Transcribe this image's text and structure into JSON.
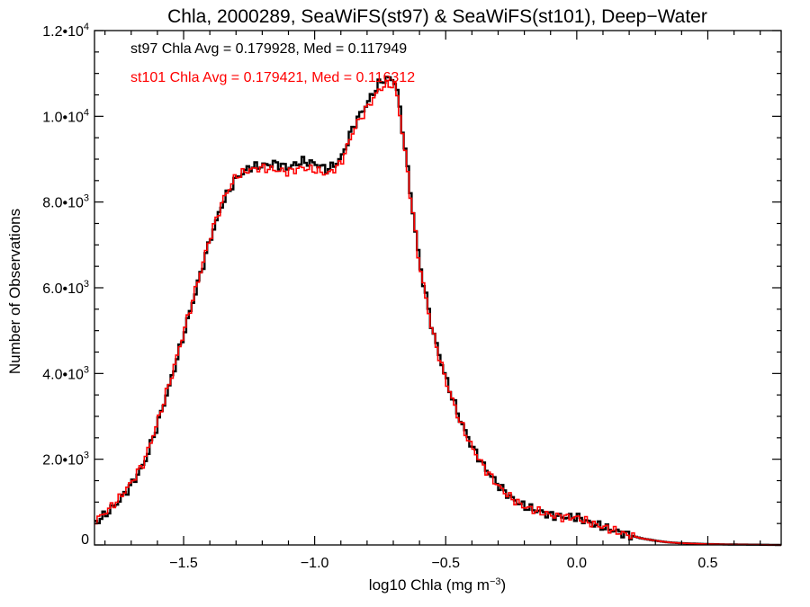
{
  "chart_data": {
    "type": "line",
    "title": "Chla, 2000289, SeaWiFS(st97) & SeaWiFS(st101), Deep−Water",
    "xlabel": "log10 Chla (mg m",
    "xlabel_sup": "−3",
    "xlabel_close": ")",
    "ylabel": "Number of Observations",
    "xlim": [
      -1.84,
      0.78
    ],
    "ylim": [
      0,
      12000
    ],
    "x_ticks": [
      {
        "value": -1.5,
        "label": "−1.5"
      },
      {
        "value": -1.0,
        "label": "−1.0"
      },
      {
        "value": -0.5,
        "label": "−0.5"
      },
      {
        "value": 0.0,
        "label": "0.0"
      },
      {
        "value": 0.5,
        "label": "0.5"
      }
    ],
    "y_ticks": [
      {
        "value": 0,
        "label": "0",
        "sup": ""
      },
      {
        "value": 2000,
        "label": "2.0•10",
        "sup": "3"
      },
      {
        "value": 4000,
        "label": "4.0•10",
        "sup": "3"
      },
      {
        "value": 6000,
        "label": "6.0•10",
        "sup": "3"
      },
      {
        "value": 8000,
        "label": "8.0•10",
        "sup": "3"
      },
      {
        "value": 10000,
        "label": "1.0•10",
        "sup": "4"
      },
      {
        "value": 12000,
        "label": "1.2•10",
        "sup": "4"
      }
    ],
    "series": [
      {
        "name": "st97",
        "color": "#000000",
        "x": [
          -1.84,
          -1.8,
          -1.75,
          -1.7,
          -1.65,
          -1.6,
          -1.55,
          -1.5,
          -1.45,
          -1.4,
          -1.35,
          -1.3,
          -1.25,
          -1.2,
          -1.15,
          -1.1,
          -1.05,
          -1.0,
          -0.95,
          -0.9,
          -0.85,
          -0.8,
          -0.75,
          -0.72,
          -0.69,
          -0.66,
          -0.63,
          -0.6,
          -0.55,
          -0.5,
          -0.45,
          -0.4,
          -0.35,
          -0.3,
          -0.25,
          -0.2,
          -0.15,
          -0.1,
          -0.05,
          0.0,
          0.05,
          0.1,
          0.15,
          0.2,
          0.25,
          0.3,
          0.35,
          0.4,
          0.5,
          0.6,
          0.7,
          0.78
        ],
        "values": [
          500,
          700,
          1000,
          1400,
          1900,
          2800,
          3800,
          4900,
          6000,
          7100,
          8000,
          8550,
          8800,
          8850,
          8900,
          8800,
          8950,
          8900,
          8750,
          9000,
          9800,
          10300,
          10800,
          10900,
          10800,
          9500,
          8000,
          6600,
          5000,
          3900,
          3000,
          2300,
          1800,
          1400,
          1100,
          900,
          800,
          700,
          650,
          650,
          520,
          420,
          320,
          230,
          150,
          100,
          60,
          40,
          20,
          10,
          5,
          0
        ]
      },
      {
        "name": "st101",
        "color": "#ff0000",
        "x": [
          -1.84,
          -1.8,
          -1.75,
          -1.7,
          -1.65,
          -1.6,
          -1.55,
          -1.5,
          -1.45,
          -1.4,
          -1.35,
          -1.3,
          -1.25,
          -1.2,
          -1.15,
          -1.1,
          -1.05,
          -1.0,
          -0.95,
          -0.9,
          -0.85,
          -0.8,
          -0.75,
          -0.72,
          -0.69,
          -0.66,
          -0.63,
          -0.6,
          -0.55,
          -0.5,
          -0.45,
          -0.4,
          -0.35,
          -0.3,
          -0.25,
          -0.2,
          -0.15,
          -0.1,
          -0.05,
          0.0,
          0.05,
          0.1,
          0.15,
          0.2,
          0.25,
          0.3,
          0.35,
          0.4,
          0.5,
          0.6,
          0.7,
          0.78
        ],
        "values": [
          550,
          750,
          1050,
          1450,
          1950,
          2850,
          3850,
          4950,
          6050,
          7150,
          8050,
          8600,
          8750,
          8800,
          8750,
          8700,
          8800,
          8750,
          8650,
          8900,
          9700,
          10200,
          10650,
          10750,
          10700,
          9400,
          7950,
          6550,
          4950,
          3850,
          2950,
          2280,
          1780,
          1380,
          1090,
          890,
          790,
          700,
          650,
          640,
          520,
          420,
          320,
          230,
          150,
          100,
          60,
          40,
          20,
          10,
          5,
          0
        ]
      }
    ],
    "annotations": [
      {
        "text": "st97 Chla Avg = 0.179928, Med = 0.117949",
        "color": "#000000"
      },
      {
        "text": "st101 Chla Avg = 0.179421, Med = 0.116312",
        "color": "#ff0000"
      }
    ],
    "grid": false,
    "legend": "none"
  }
}
